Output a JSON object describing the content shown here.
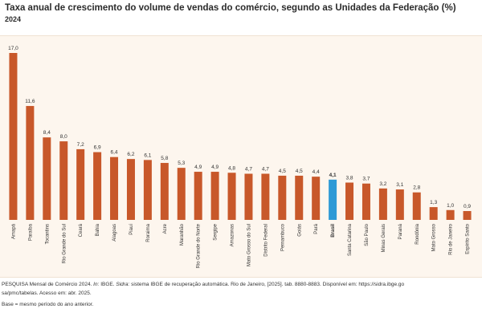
{
  "title": "Taxa anual de crescimento do volume de vendas do comércio, segundo as Unidades da Federação (%)",
  "subtitle": "2024",
  "chart_data": {
    "type": "bar",
    "title": "Taxa anual de crescimento do volume de vendas do comércio, segundo as Unidades da Federação (%)",
    "subtitle": "2024",
    "xlabel": "",
    "ylabel": "",
    "ylim": [
      0,
      17.0
    ],
    "grid": false,
    "highlight_category": "Brasil",
    "colors": {
      "bar": "#c8582a",
      "highlight": "#2e9ad6"
    },
    "categories": [
      "Amapá",
      "Paraíba",
      "Tocantins",
      "Rio Grande do Sul",
      "Ceará",
      "Bahia",
      "Alagoas",
      "Piauí",
      "Roraima",
      "Acre",
      "Maranhão",
      "Rio Grande do Norte",
      "Sergipe",
      "Amazonas",
      "Mato Grosso do Sul",
      "Distrito Federal",
      "Pernambuco",
      "Goiás",
      "Pará",
      "Brasil",
      "Santa Catarina",
      "São Paulo",
      "Minas Gerais",
      "Paraná",
      "Rondônia",
      "Mato Grosso",
      "Rio de Janeiro",
      "Espírito Santo"
    ],
    "values": [
      17.0,
      11.6,
      8.4,
      8.0,
      7.2,
      6.9,
      6.4,
      6.2,
      6.1,
      5.8,
      5.3,
      4.9,
      4.9,
      4.8,
      4.7,
      4.7,
      4.5,
      4.5,
      4.4,
      4.1,
      3.8,
      3.7,
      3.2,
      3.1,
      2.8,
      1.3,
      1.0,
      0.9
    ],
    "value_labels": [
      "17,0",
      "11,6",
      "8,4",
      "8,0",
      "7,2",
      "6,9",
      "6,4",
      "6,2",
      "6,1",
      "5,8",
      "5,3",
      "4,9",
      "4,9",
      "4,8",
      "4,7",
      "4,7",
      "4,5",
      "4,5",
      "4,4",
      "4,1",
      "3,8",
      "3,7",
      "3,2",
      "3,1",
      "2,8",
      "1,3",
      "1,0",
      "0,9"
    ]
  },
  "footer": {
    "source_prefix": "PESQUISA Mensal de Comércio 2024. ",
    "in_label": "In:",
    "source_ibge": " IBGE. ",
    "sidra_label": "Sidra:",
    "source_rest": " sistema IBGE de recuperação automática. Rio de Janeiro, [2025]. tab. 8880-8883. Disponível em: https://sidra.ibge.go",
    "line2": "sa/pmc/tabelas. Acesso em: abr. 2025.",
    "line3": "Base = mesmo período do ano anterior."
  }
}
